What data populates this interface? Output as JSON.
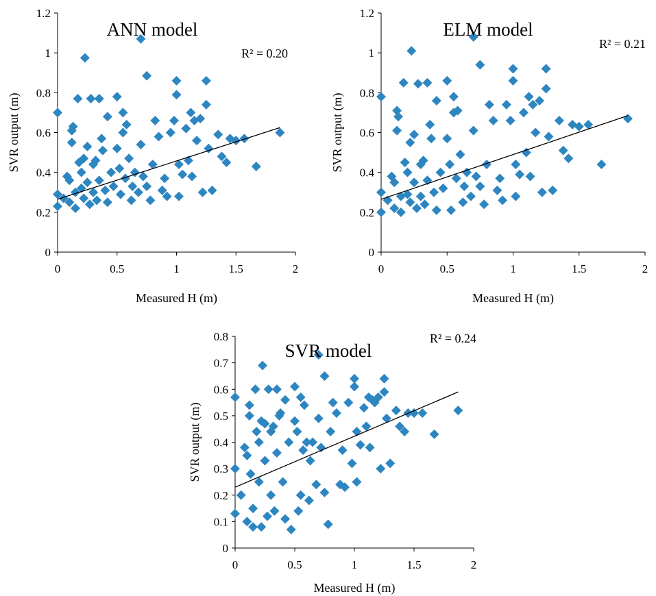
{
  "chart_data": [
    {
      "type": "scatter",
      "title": "ANN model",
      "xlabel": "Measured H (m)",
      "ylabel": "SVR output (m)",
      "annotation": "R² = 0.20",
      "xlim": [
        0,
        2
      ],
      "ylim": [
        0,
        1.2
      ],
      "xticks": [
        "0",
        "0.5",
        "1",
        "1.5",
        "2"
      ],
      "yticks": [
        "0",
        "0.2",
        "0.4",
        "0.6",
        "0.8",
        "1",
        "1.2"
      ],
      "marker_color": "#2E86C1",
      "trendline": [
        [
          0,
          0.265
        ],
        [
          1.87,
          0.625
        ]
      ],
      "points": [
        [
          0.0,
          0.7
        ],
        [
          0.0,
          0.29
        ],
        [
          0.0,
          0.23
        ],
        [
          0.05,
          0.27
        ],
        [
          0.08,
          0.38
        ],
        [
          0.1,
          0.36
        ],
        [
          0.1,
          0.25
        ],
        [
          0.12,
          0.61
        ],
        [
          0.12,
          0.55
        ],
        [
          0.13,
          0.63
        ],
        [
          0.15,
          0.3
        ],
        [
          0.15,
          0.22
        ],
        [
          0.17,
          0.77
        ],
        [
          0.18,
          0.45
        ],
        [
          0.2,
          0.4
        ],
        [
          0.2,
          0.32
        ],
        [
          0.22,
          0.47
        ],
        [
          0.22,
          0.27
        ],
        [
          0.23,
          0.975
        ],
        [
          0.25,
          0.53
        ],
        [
          0.25,
          0.35
        ],
        [
          0.27,
          0.24
        ],
        [
          0.28,
          0.77
        ],
        [
          0.3,
          0.44
        ],
        [
          0.3,
          0.3
        ],
        [
          0.32,
          0.46
        ],
        [
          0.33,
          0.26
        ],
        [
          0.35,
          0.77
        ],
        [
          0.35,
          0.36
        ],
        [
          0.37,
          0.57
        ],
        [
          0.38,
          0.51
        ],
        [
          0.4,
          0.31
        ],
        [
          0.42,
          0.68
        ],
        [
          0.42,
          0.25
        ],
        [
          0.45,
          0.4
        ],
        [
          0.47,
          0.33
        ],
        [
          0.5,
          0.78
        ],
        [
          0.5,
          0.52
        ],
        [
          0.52,
          0.42
        ],
        [
          0.53,
          0.29
        ],
        [
          0.55,
          0.7
        ],
        [
          0.55,
          0.6
        ],
        [
          0.57,
          0.37
        ],
        [
          0.58,
          0.64
        ],
        [
          0.6,
          0.47
        ],
        [
          0.62,
          0.26
        ],
        [
          0.63,
          0.33
        ],
        [
          0.65,
          0.4
        ],
        [
          0.68,
          0.3
        ],
        [
          0.7,
          1.07
        ],
        [
          0.7,
          0.54
        ],
        [
          0.72,
          0.38
        ],
        [
          0.75,
          0.885
        ],
        [
          0.75,
          0.33
        ],
        [
          0.78,
          0.26
        ],
        [
          0.8,
          0.44
        ],
        [
          0.82,
          0.66
        ],
        [
          0.85,
          0.58
        ],
        [
          0.88,
          0.31
        ],
        [
          0.9,
          0.37
        ],
        [
          0.92,
          0.28
        ],
        [
          0.95,
          0.6
        ],
        [
          0.98,
          0.66
        ],
        [
          1.0,
          0.86
        ],
        [
          1.0,
          0.79
        ],
        [
          1.02,
          0.44
        ],
        [
          1.02,
          0.28
        ],
        [
          1.05,
          0.39
        ],
        [
          1.08,
          0.62
        ],
        [
          1.1,
          0.46
        ],
        [
          1.12,
          0.7
        ],
        [
          1.13,
          0.38
        ],
        [
          1.15,
          0.66
        ],
        [
          1.17,
          0.56
        ],
        [
          1.2,
          0.67
        ],
        [
          1.22,
          0.3
        ],
        [
          1.25,
          0.86
        ],
        [
          1.25,
          0.74
        ],
        [
          1.27,
          0.52
        ],
        [
          1.3,
          0.31
        ],
        [
          1.35,
          0.59
        ],
        [
          1.38,
          0.48
        ],
        [
          1.42,
          0.45
        ],
        [
          1.45,
          0.57
        ],
        [
          1.5,
          0.56
        ],
        [
          1.57,
          0.57
        ],
        [
          1.67,
          0.43
        ],
        [
          1.87,
          0.6
        ]
      ]
    },
    {
      "type": "scatter",
      "title": "ELM model",
      "xlabel": "Measured H (m)",
      "ylabel": "SVR output (m)",
      "annotation": "R² = 0.21",
      "xlim": [
        0,
        2
      ],
      "ylim": [
        0,
        1.2
      ],
      "xticks": [
        "0",
        "0.5",
        "1",
        "1.5",
        "2"
      ],
      "yticks": [
        "0",
        "0.2",
        "0.4",
        "0.6",
        "0.8",
        "1",
        "1.2"
      ],
      "marker_color": "#2E86C1",
      "trendline": [
        [
          0,
          0.265
        ],
        [
          1.87,
          0.685
        ]
      ],
      "points": [
        [
          0.0,
          0.78
        ],
        [
          0.0,
          0.3
        ],
        [
          0.0,
          0.2
        ],
        [
          0.05,
          0.26
        ],
        [
          0.08,
          0.38
        ],
        [
          0.1,
          0.35
        ],
        [
          0.1,
          0.22
        ],
        [
          0.12,
          0.71
        ],
        [
          0.12,
          0.61
        ],
        [
          0.13,
          0.68
        ],
        [
          0.15,
          0.28
        ],
        [
          0.15,
          0.2
        ],
        [
          0.17,
          0.85
        ],
        [
          0.18,
          0.45
        ],
        [
          0.2,
          0.4
        ],
        [
          0.2,
          0.29
        ],
        [
          0.22,
          0.55
        ],
        [
          0.22,
          0.25
        ],
        [
          0.23,
          1.01
        ],
        [
          0.25,
          0.59
        ],
        [
          0.25,
          0.35
        ],
        [
          0.27,
          0.22
        ],
        [
          0.28,
          0.845
        ],
        [
          0.3,
          0.44
        ],
        [
          0.3,
          0.28
        ],
        [
          0.32,
          0.46
        ],
        [
          0.33,
          0.24
        ],
        [
          0.35,
          0.85
        ],
        [
          0.35,
          0.36
        ],
        [
          0.37,
          0.64
        ],
        [
          0.38,
          0.57
        ],
        [
          0.4,
          0.3
        ],
        [
          0.42,
          0.76
        ],
        [
          0.42,
          0.21
        ],
        [
          0.45,
          0.4
        ],
        [
          0.47,
          0.32
        ],
        [
          0.5,
          0.86
        ],
        [
          0.5,
          0.57
        ],
        [
          0.52,
          0.44
        ],
        [
          0.53,
          0.21
        ],
        [
          0.55,
          0.78
        ],
        [
          0.55,
          0.7
        ],
        [
          0.57,
          0.37
        ],
        [
          0.58,
          0.71
        ],
        [
          0.6,
          0.49
        ],
        [
          0.62,
          0.25
        ],
        [
          0.63,
          0.33
        ],
        [
          0.65,
          0.4
        ],
        [
          0.68,
          0.28
        ],
        [
          0.7,
          1.08
        ],
        [
          0.7,
          0.61
        ],
        [
          0.72,
          0.38
        ],
        [
          0.75,
          0.94
        ],
        [
          0.75,
          0.33
        ],
        [
          0.78,
          0.24
        ],
        [
          0.8,
          0.44
        ],
        [
          0.82,
          0.74
        ],
        [
          0.85,
          0.66
        ],
        [
          0.88,
          0.31
        ],
        [
          0.9,
          0.37
        ],
        [
          0.92,
          0.26
        ],
        [
          0.95,
          0.74
        ],
        [
          0.98,
          0.66
        ],
        [
          1.0,
          0.92
        ],
        [
          1.0,
          0.86
        ],
        [
          1.02,
          0.44
        ],
        [
          1.02,
          0.28
        ],
        [
          1.05,
          0.39
        ],
        [
          1.08,
          0.7
        ],
        [
          1.1,
          0.5
        ],
        [
          1.12,
          0.78
        ],
        [
          1.13,
          0.38
        ],
        [
          1.15,
          0.74
        ],
        [
          1.17,
          0.6
        ],
        [
          1.2,
          0.76
        ],
        [
          1.22,
          0.3
        ],
        [
          1.25,
          0.92
        ],
        [
          1.25,
          0.82
        ],
        [
          1.27,
          0.58
        ],
        [
          1.3,
          0.31
        ],
        [
          1.35,
          0.66
        ],
        [
          1.38,
          0.51
        ],
        [
          1.42,
          0.47
        ],
        [
          1.45,
          0.64
        ],
        [
          1.5,
          0.63
        ],
        [
          1.57,
          0.64
        ],
        [
          1.67,
          0.44
        ],
        [
          1.87,
          0.67
        ]
      ]
    },
    {
      "type": "scatter",
      "title": "SVR model",
      "xlabel": "Measured H (m)",
      "ylabel": "SVR output (m)",
      "annotation": "R² = 0.24",
      "xlim": [
        0,
        2
      ],
      "ylim": [
        0,
        0.8
      ],
      "xticks": [
        "0",
        "0.5",
        "1",
        "1.5",
        "2"
      ],
      "yticks": [
        "0",
        "0.1",
        "0.2",
        "0.3",
        "0.4",
        "0.5",
        "0.6",
        "0.7",
        "0.8"
      ],
      "marker_color": "#2E86C1",
      "trendline": [
        [
          0,
          0.23
        ],
        [
          1.87,
          0.59
        ]
      ],
      "points": [
        [
          0.0,
          0.57
        ],
        [
          0.0,
          0.3
        ],
        [
          0.0,
          0.13
        ],
        [
          0.05,
          0.2
        ],
        [
          0.08,
          0.38
        ],
        [
          0.1,
          0.35
        ],
        [
          0.1,
          0.1
        ],
        [
          0.12,
          0.54
        ],
        [
          0.12,
          0.5
        ],
        [
          0.13,
          0.28
        ],
        [
          0.15,
          0.08
        ],
        [
          0.15,
          0.15
        ],
        [
          0.17,
          0.6
        ],
        [
          0.18,
          0.44
        ],
        [
          0.2,
          0.4
        ],
        [
          0.2,
          0.25
        ],
        [
          0.22,
          0.48
        ],
        [
          0.22,
          0.08
        ],
        [
          0.23,
          0.69
        ],
        [
          0.25,
          0.47
        ],
        [
          0.25,
          0.33
        ],
        [
          0.27,
          0.12
        ],
        [
          0.28,
          0.6
        ],
        [
          0.3,
          0.44
        ],
        [
          0.3,
          0.2
        ],
        [
          0.32,
          0.46
        ],
        [
          0.33,
          0.14
        ],
        [
          0.35,
          0.6
        ],
        [
          0.35,
          0.36
        ],
        [
          0.37,
          0.5
        ],
        [
          0.38,
          0.51
        ],
        [
          0.4,
          0.25
        ],
        [
          0.42,
          0.56
        ],
        [
          0.42,
          0.11
        ],
        [
          0.45,
          0.4
        ],
        [
          0.47,
          0.07
        ],
        [
          0.5,
          0.61
        ],
        [
          0.5,
          0.48
        ],
        [
          0.52,
          0.44
        ],
        [
          0.53,
          0.14
        ],
        [
          0.55,
          0.57
        ],
        [
          0.55,
          0.2
        ],
        [
          0.57,
          0.37
        ],
        [
          0.58,
          0.54
        ],
        [
          0.6,
          0.4
        ],
        [
          0.62,
          0.18
        ],
        [
          0.63,
          0.33
        ],
        [
          0.65,
          0.4
        ],
        [
          0.68,
          0.24
        ],
        [
          0.7,
          0.73
        ],
        [
          0.7,
          0.49
        ],
        [
          0.72,
          0.38
        ],
        [
          0.75,
          0.65
        ],
        [
          0.75,
          0.21
        ],
        [
          0.78,
          0.09
        ],
        [
          0.8,
          0.44
        ],
        [
          0.82,
          0.55
        ],
        [
          0.85,
          0.51
        ],
        [
          0.88,
          0.24
        ],
        [
          0.9,
          0.37
        ],
        [
          0.92,
          0.23
        ],
        [
          0.95,
          0.55
        ],
        [
          0.98,
          0.32
        ],
        [
          1.0,
          0.64
        ],
        [
          1.0,
          0.61
        ],
        [
          1.02,
          0.44
        ],
        [
          1.02,
          0.25
        ],
        [
          1.05,
          0.39
        ],
        [
          1.08,
          0.53
        ],
        [
          1.1,
          0.46
        ],
        [
          1.12,
          0.57
        ],
        [
          1.13,
          0.38
        ],
        [
          1.15,
          0.56
        ],
        [
          1.17,
          0.55
        ],
        [
          1.2,
          0.57
        ],
        [
          1.22,
          0.3
        ],
        [
          1.25,
          0.64
        ],
        [
          1.25,
          0.59
        ],
        [
          1.27,
          0.49
        ],
        [
          1.3,
          0.32
        ],
        [
          1.35,
          0.52
        ],
        [
          1.38,
          0.46
        ],
        [
          1.42,
          0.44
        ],
        [
          1.45,
          0.51
        ],
        [
          1.5,
          0.51
        ],
        [
          1.57,
          0.51
        ],
        [
          1.67,
          0.43
        ],
        [
          1.87,
          0.52
        ]
      ]
    }
  ]
}
